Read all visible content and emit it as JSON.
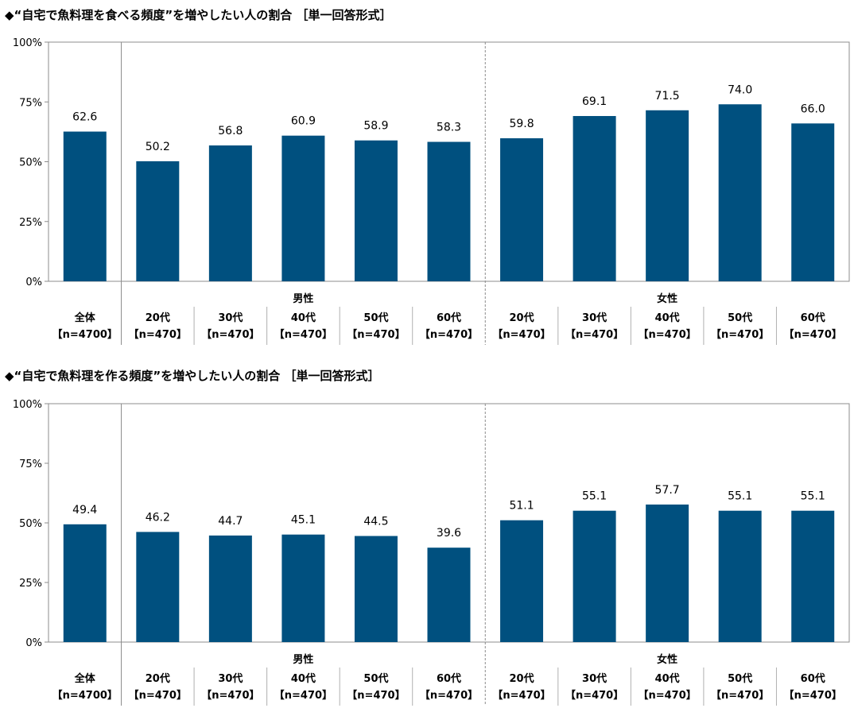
{
  "chart_data": [
    {
      "type": "bar",
      "title": "◆“自宅で魚料理を食べる頻度”を増やしたい人の割合 ［単一回答形式］",
      "yticks": [
        "100%",
        "75%",
        "50%",
        "25%",
        "0%"
      ],
      "ylim": [
        0,
        100
      ],
      "groups": [
        "男性",
        "女性"
      ],
      "categories": [
        {
          "label": "全体",
          "n": "【n=4700】"
        },
        {
          "label": "20代",
          "n": "【n=470】"
        },
        {
          "label": "30代",
          "n": "【n=470】"
        },
        {
          "label": "40代",
          "n": "【n=470】"
        },
        {
          "label": "50代",
          "n": "【n=470】"
        },
        {
          "label": "60代",
          "n": "【n=470】"
        },
        {
          "label": "20代",
          "n": "【n=470】"
        },
        {
          "label": "30代",
          "n": "【n=470】"
        },
        {
          "label": "40代",
          "n": "【n=470】"
        },
        {
          "label": "50代",
          "n": "【n=470】"
        },
        {
          "label": "60代",
          "n": "【n=470】"
        }
      ],
      "values": [
        62.6,
        50.2,
        56.8,
        60.9,
        58.9,
        58.3,
        59.8,
        69.1,
        71.5,
        74.0,
        66.0
      ],
      "value_labels": [
        "62.6",
        "50.2",
        "56.8",
        "60.9",
        "58.9",
        "58.3",
        "59.8",
        "69.1",
        "71.5",
        "74.0",
        "66.0"
      ],
      "bar_color": "#00507f",
      "grid": false
    },
    {
      "type": "bar",
      "title": "◆“自宅で魚料理を作る頻度”を増やしたい人の割合 ［単一回答形式］",
      "yticks": [
        "100%",
        "75%",
        "50%",
        "25%",
        "0%"
      ],
      "ylim": [
        0,
        100
      ],
      "groups": [
        "男性",
        "女性"
      ],
      "categories": [
        {
          "label": "全体",
          "n": "【n=4700】"
        },
        {
          "label": "20代",
          "n": "【n=470】"
        },
        {
          "label": "30代",
          "n": "【n=470】"
        },
        {
          "label": "40代",
          "n": "【n=470】"
        },
        {
          "label": "50代",
          "n": "【n=470】"
        },
        {
          "label": "60代",
          "n": "【n=470】"
        },
        {
          "label": "20代",
          "n": "【n=470】"
        },
        {
          "label": "30代",
          "n": "【n=470】"
        },
        {
          "label": "40代",
          "n": "【n=470】"
        },
        {
          "label": "50代",
          "n": "【n=470】"
        },
        {
          "label": "60代",
          "n": "【n=470】"
        }
      ],
      "values": [
        49.4,
        46.2,
        44.7,
        45.1,
        44.5,
        39.6,
        51.1,
        55.1,
        57.7,
        55.1,
        55.1
      ],
      "value_labels": [
        "49.4",
        "46.2",
        "44.7",
        "45.1",
        "44.5",
        "39.6",
        "51.1",
        "55.1",
        "57.7",
        "55.1",
        "55.1"
      ],
      "bar_color": "#00507f",
      "grid": false
    }
  ]
}
